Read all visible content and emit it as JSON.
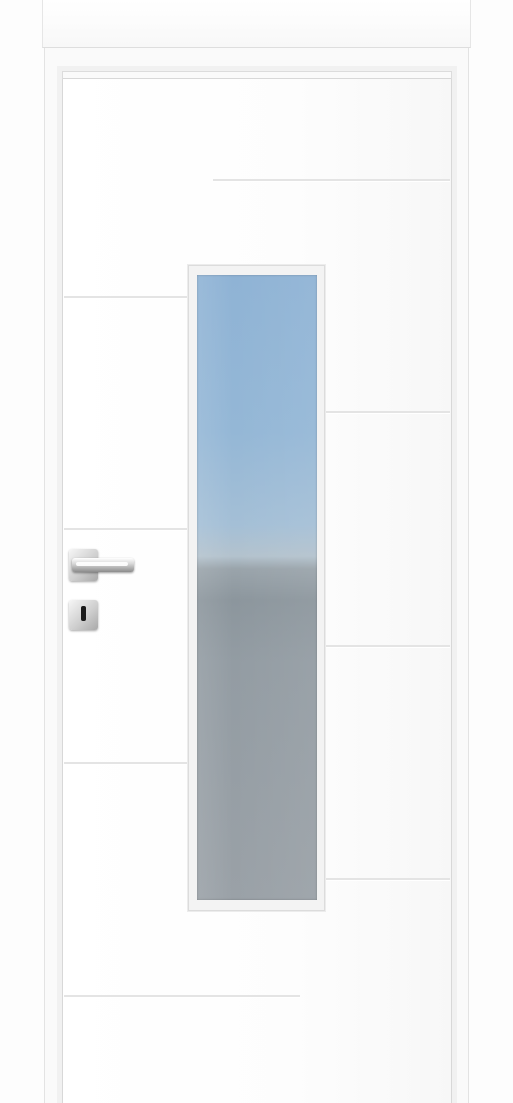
{
  "scene": {
    "subject": "interior-door",
    "colors": {
      "door": "#ffffff",
      "frame": "#f1f1f1",
      "groove": "#e4e4e4",
      "glass_top": "#8fb3d5",
      "glass_bottom": "#9aa1a7",
      "hardware": "#c8c8c8"
    },
    "icons": [
      "door-handle-icon",
      "keyhole-icon"
    ]
  }
}
